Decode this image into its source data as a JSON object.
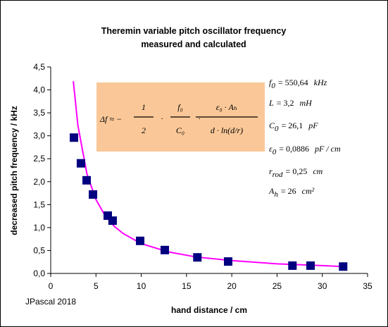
{
  "chart_data": {
    "type": "scatter",
    "title": [
      "Theremin variable pitch oscillator frequency",
      "measured and calculated"
    ],
    "xlabel": "hand distance / cm",
    "ylabel": "decreased pitch frequency / kHz",
    "annotation": "JPascal 2018",
    "xlim": [
      0,
      35
    ],
    "xticks": [
      0,
      5,
      10,
      15,
      20,
      25,
      30,
      35
    ],
    "ylim": [
      0,
      4.5
    ],
    "yticks": [
      {
        "value": 0,
        "label": "0,0"
      },
      {
        "value": 0.5,
        "label": "0,5"
      },
      {
        "value": 1,
        "label": "1,0"
      },
      {
        "value": 1.5,
        "label": "1,5"
      },
      {
        "value": 2,
        "label": "2,0"
      },
      {
        "value": 2.5,
        "label": "2,5"
      },
      {
        "value": 3,
        "label": "3,0"
      },
      {
        "value": 3.5,
        "label": "3,5"
      },
      {
        "value": 4,
        "label": "4,0"
      },
      {
        "value": 4.5,
        "label": "4,5"
      }
    ],
    "series": [
      {
        "type": "scatter",
        "marker": "square",
        "color": "#000080",
        "x": [
          2.57,
          3.34,
          3.97,
          4.67,
          6.3,
          6.84,
          9.88,
          12.6,
          16.2,
          19.6,
          26.7,
          28.7,
          32.3
        ],
        "values": [
          2.96,
          2.4,
          2.03,
          1.72,
          1.26,
          1.15,
          0.71,
          0.51,
          0.35,
          0.26,
          0.17,
          0.17,
          0.15
        ]
      },
      {
        "type": "line",
        "color": "#ff00ff",
        "x": [
          2.5,
          3,
          4,
          5,
          6,
          7,
          8,
          10,
          13,
          16,
          20,
          25,
          30,
          32.3
        ],
        "values": [
          4.19,
          3.23,
          2.17,
          1.61,
          1.26,
          1.03,
          0.87,
          0.65,
          0.47,
          0.36,
          0.28,
          0.21,
          0.17,
          0.15
        ]
      }
    ],
    "formula": {
      "lhs": "Δf ≈ −",
      "sep": "·",
      "terms": [
        {
          "num": "1",
          "den": "2"
        },
        {
          "num": "f₀",
          "den": "C₀"
        },
        {
          "num": "ε₀ · Aₕ",
          "den": "d · ln(d/r)"
        }
      ]
    },
    "parameters": [
      {
        "symbol": "f",
        "sub": "0",
        "value": "= 550,64",
        "unit": "kHz"
      },
      {
        "symbol": "L",
        "value": "= 3,2",
        "unit": "mH"
      },
      {
        "symbol": "C",
        "sub": "0",
        "value": "= 26,1",
        "unit": "pF"
      },
      {
        "symbol": "ε",
        "sub": "0",
        "value": "= 0,0886",
        "unit": "pF / cm"
      },
      {
        "symbol": "r",
        "sub": "rod",
        "value": "= 0,25",
        "unit": "cm"
      },
      {
        "symbol": "A",
        "sub": "h",
        "value": "= 26",
        "unit": "cm²"
      }
    ]
  }
}
